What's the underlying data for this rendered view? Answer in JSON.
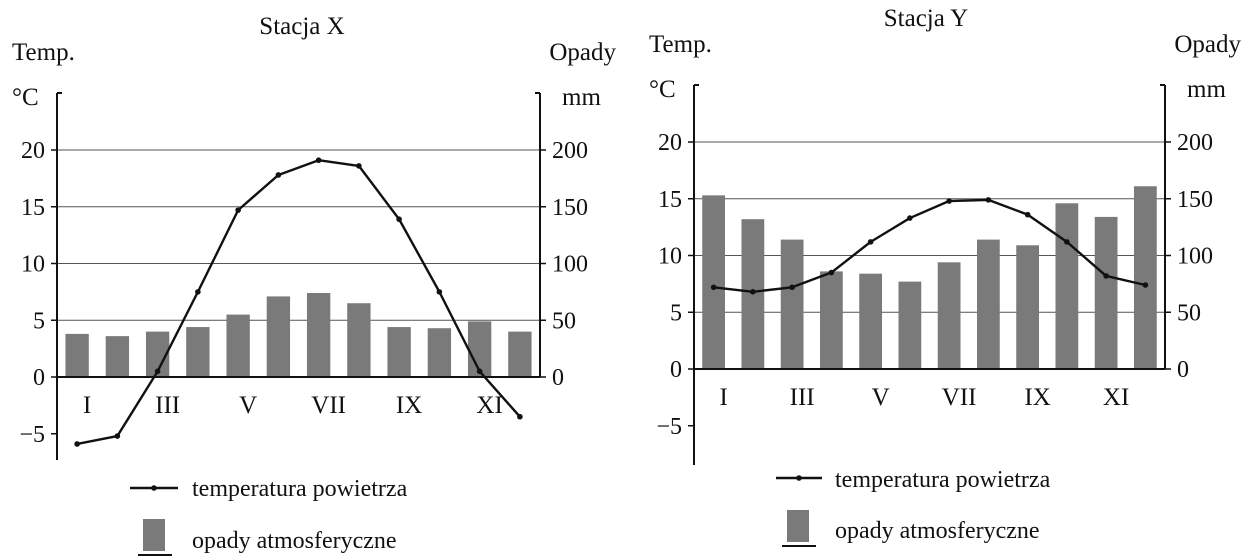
{
  "legend": {
    "temperature_label": "temperatura powietrza",
    "precip_label": "opady atmosferyczne"
  },
  "chart_data": [
    {
      "type": "bar",
      "title": "Stacja X",
      "left_axis_title": "Temp.",
      "left_axis_unit": "°C",
      "right_axis_title": "Opady",
      "right_axis_unit": "mm",
      "month_labels": [
        "I",
        "III",
        "V",
        "VII",
        "IX",
        "XI"
      ],
      "temp_ticks": [
        -5,
        0,
        5,
        10,
        15,
        20
      ],
      "precip_ticks": [
        0,
        50,
        100,
        150,
        200
      ],
      "ylim_temp": [
        -8,
        25
      ],
      "ylim_precip": [
        0,
        250
      ],
      "gridlines": true,
      "series": [
        {
          "name": "temperatura powietrza",
          "type": "line",
          "axis": "left",
          "unit": "°C",
          "values": [
            -5.9,
            -5.2,
            0.5,
            7.5,
            14.7,
            17.8,
            19.1,
            18.6,
            13.9,
            7.5,
            0.5,
            -3.5
          ]
        },
        {
          "name": "opady atmosferyczne",
          "type": "bar",
          "axis": "right",
          "unit": "mm",
          "values": [
            38,
            36,
            40,
            44,
            55,
            71,
            74,
            65,
            44,
            43,
            49,
            40
          ]
        }
      ]
    },
    {
      "type": "bar",
      "title": "Stacja Y",
      "left_axis_title": "Temp.",
      "left_axis_unit": "°C",
      "right_axis_title": "Opady",
      "right_axis_unit": "mm",
      "month_labels": [
        "I",
        "III",
        "V",
        "VII",
        "IX",
        "XI"
      ],
      "temp_ticks": [
        -5,
        0,
        5,
        10,
        15,
        20
      ],
      "precip_ticks": [
        0,
        50,
        100,
        150,
        200
      ],
      "ylim_temp": [
        -8,
        25
      ],
      "ylim_precip": [
        0,
        250
      ],
      "gridlines": true,
      "series": [
        {
          "name": "temperatura powietrza",
          "type": "line",
          "axis": "left",
          "unit": "°C",
          "values": [
            7.2,
            6.8,
            7.2,
            8.5,
            11.2,
            13.3,
            14.8,
            14.9,
            13.6,
            11.2,
            8.2,
            7.4
          ]
        },
        {
          "name": "opady atmosferyczne",
          "type": "bar",
          "axis": "right",
          "unit": "mm",
          "values": [
            153,
            132,
            114,
            86,
            84,
            77,
            94,
            114,
            109,
            146,
            134,
            161
          ]
        }
      ]
    }
  ]
}
